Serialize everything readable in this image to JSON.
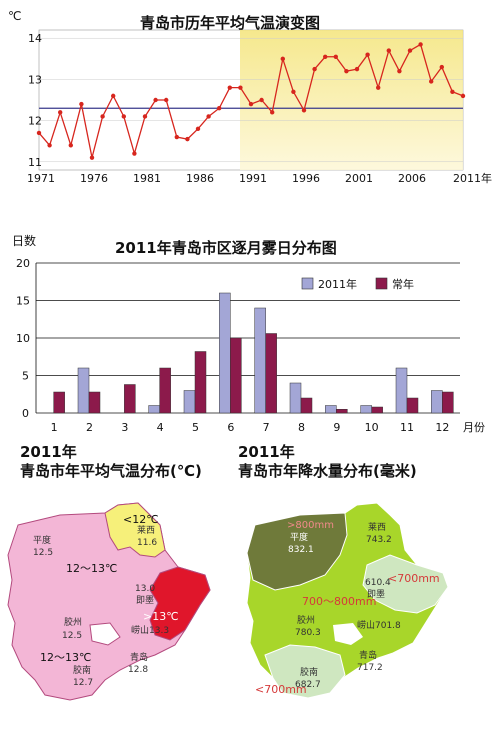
{
  "chart_data": [
    {
      "type": "line",
      "title": "青岛市历年平均气温演变图",
      "ylabel": "℃",
      "xlabel": "年",
      "x": [
        1971,
        1972,
        1973,
        1974,
        1975,
        1976,
        1977,
        1978,
        1979,
        1980,
        1981,
        1982,
        1983,
        1984,
        1985,
        1986,
        1987,
        1988,
        1989,
        1990,
        1991,
        1992,
        1993,
        1994,
        1995,
        1996,
        1997,
        1998,
        1999,
        2000,
        2001,
        2002,
        2003,
        2004,
        2005,
        2006,
        2007,
        2008,
        2009,
        2010,
        2011
      ],
      "values": [
        11.7,
        11.4,
        12.2,
        11.4,
        12.4,
        11.1,
        12.1,
        12.6,
        12.1,
        11.2,
        12.1,
        12.5,
        12.5,
        11.6,
        11.55,
        11.8,
        12.1,
        12.3,
        12.8,
        12.8,
        12.4,
        12.5,
        12.2,
        13.5,
        12.7,
        12.25,
        13.25,
        13.55,
        13.55,
        13.2,
        13.25,
        13.6,
        12.8,
        13.7,
        13.2,
        13.7,
        13.85,
        12.95,
        13.3,
        12.7,
        12.6
      ],
      "average": 12.3,
      "xticks": [
        "1971",
        "1976",
        "1981",
        "1986",
        "1991",
        "1996",
        "2001",
        "2006",
        "2011年"
      ],
      "yticks": [
        "11",
        "12",
        "13",
        "14"
      ],
      "ylim": [
        10.8,
        14.2
      ]
    },
    {
      "type": "bar",
      "title": "2011年青岛市区逐月雾日分布图",
      "ylabel": "日数",
      "xlabel": "月份",
      "categories": [
        "1",
        "2",
        "3",
        "4",
        "5",
        "6",
        "7",
        "8",
        "9",
        "10",
        "11",
        "12"
      ],
      "series": [
        {
          "name": "2011年",
          "values": [
            0,
            6,
            0,
            1,
            3,
            16,
            14,
            4,
            1,
            1,
            6,
            3
          ],
          "color": "#a3a6d6"
        },
        {
          "name": "常年",
          "values": [
            2.8,
            2.8,
            3.8,
            6,
            8.2,
            10,
            10.6,
            2,
            0.5,
            0.8,
            2,
            2.8
          ],
          "color": "#8c1a4b"
        }
      ],
      "yticks": [
        "0",
        "5",
        "10",
        "15",
        "20"
      ],
      "ylim": [
        0,
        20
      ],
      "legend": "top-right"
    }
  ],
  "temp_map": {
    "title_line1": "2011年",
    "title_line2": "青岛市年平均气温分布(℃)",
    "labels": {
      "pingdu": "平度",
      "pingdu_val": "12.5",
      "laixi": "莱西",
      "laixi_val": "11.6",
      "lt12": "<12℃",
      "range1": "12～13℃",
      "jimo": "即墨",
      "jimo_val": "13.0",
      "gt13": ">13℃",
      "laoshan": "崂山",
      "laoshan_val": "13.3",
      "jiaozhou": "胶州",
      "jiaozhou_val": "12.5",
      "range2": "12～13℃",
      "qingdao": "青岛",
      "qingdao_val": "12.8",
      "jiaonan": "胶南",
      "jiaonan_val": "12.7"
    }
  },
  "rain_map": {
    "title_line1": "2011年",
    "title_line2": "青岛市年降水量分布(毫米)",
    "labels": {
      "gt800": ">800mm",
      "pingdu": "平度",
      "pingdu_val": "832.1",
      "laixi": "莱西",
      "laixi_val": "743.2",
      "jimo_val": "610.4",
      "jimo": "即墨",
      "lt700": "<700mm",
      "range": "700～800mm",
      "jiaozhou": "胶州",
      "jiaozhou_val": "780.3",
      "laoshan": "崂山",
      "laoshan_val": "701.8",
      "qingdao": "青岛",
      "qingdao_val": "717.2",
      "jiaonan": "胶南",
      "jiaonan_val": "682.7",
      "lt700b": "<700mm"
    }
  },
  "colors": {
    "temp_line": "#d7261e",
    "avg_line": "#3a3a8c",
    "band_yellow": "#f7e98a",
    "map_pink": "#f3b6d6",
    "map_yellow": "#f6f07a",
    "map_red": "#e0162b",
    "rain_dark": "#6f7a3a",
    "rain_green": "#a8d62a",
    "rain_light": "#cfe7c0"
  }
}
